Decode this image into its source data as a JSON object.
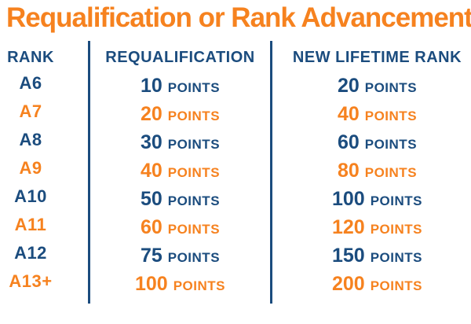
{
  "points_label": "POINTS",
  "colors": {
    "orange": "#F6821F",
    "navy": "#1B4C7E"
  },
  "chart_data": {
    "type": "table",
    "title": "Requalification or Rank Advancement",
    "columns": [
      "RANK",
      "REQUALIFICATION",
      "NEW LIFETIME RANK"
    ],
    "rows": [
      {
        "rank": "A6",
        "requalification": "10",
        "new_lifetime_rank": "20",
        "color": "navy"
      },
      {
        "rank": "A7",
        "requalification": "20",
        "new_lifetime_rank": "40",
        "color": "orange"
      },
      {
        "rank": "A8",
        "requalification": "30",
        "new_lifetime_rank": "60",
        "color": "navy"
      },
      {
        "rank": "A9",
        "requalification": "40",
        "new_lifetime_rank": "80",
        "color": "orange"
      },
      {
        "rank": "A10",
        "requalification": "50",
        "new_lifetime_rank": "100",
        "color": "navy"
      },
      {
        "rank": "A11",
        "requalification": "60",
        "new_lifetime_rank": "120",
        "color": "orange"
      },
      {
        "rank": "A12",
        "requalification": "75",
        "new_lifetime_rank": "150",
        "color": "navy"
      },
      {
        "rank": "A13+",
        "requalification": "100",
        "new_lifetime_rank": "200",
        "color": "orange"
      }
    ]
  }
}
